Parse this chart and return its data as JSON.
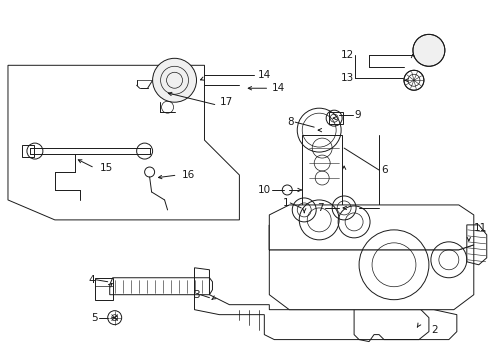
{
  "bg_color": "#ffffff",
  "fg_color": "#1a1a1a",
  "fig_width": 4.89,
  "fig_height": 3.6,
  "dpi": 100,
  "lw": 0.7,
  "label_fs": 7.5
}
